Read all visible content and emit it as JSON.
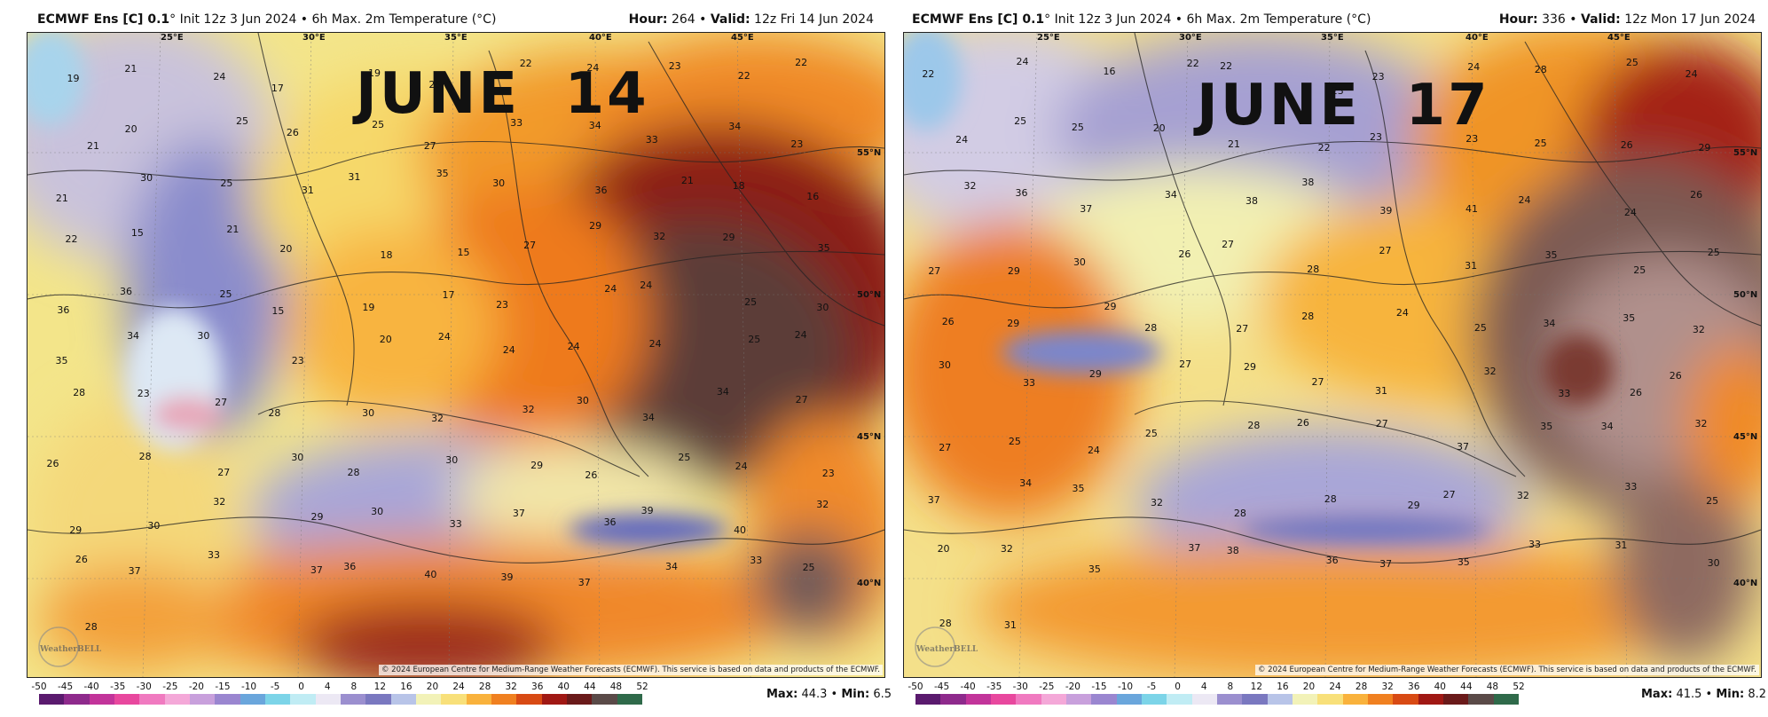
{
  "panels": [
    {
      "header_left_model": "ECMWF Ens [C] 0.1",
      "header_left_rest": "° Init 12z 3 Jun 2024 • 6h Max. 2m Temperature (°C)",
      "hour_label": "Hour:",
      "hour": "264",
      "valid_label": "Valid:",
      "valid": "12z Fri 14 Jun 2024",
      "overlay_title": "JUNE  14",
      "max_label": "Max:",
      "max": "44.3",
      "min_label": "Min:",
      "min": "6.5",
      "copyright": "© 2024 European Centre for Medium-Range Weather Forecasts (ECMWF). This service is based on data and products of the ECMWF.",
      "watermark": "WeatherBELL",
      "lon_labels": [
        "25°E",
        "30°E",
        "35°E",
        "40°E",
        "45°E"
      ],
      "lat_labels": [
        "55°N",
        "50°N",
        "45°N",
        "40°N"
      ],
      "values": [
        "19",
        "21",
        "24",
        "17",
        "19",
        "23",
        "22",
        "24",
        "23",
        "22",
        "22",
        "21",
        "20",
        "25",
        "26",
        "25",
        "27",
        "33",
        "34",
        "33",
        "34",
        "23",
        "21",
        "30",
        "25",
        "31",
        "31",
        "35",
        "30",
        "36",
        "21",
        "18",
        "16",
        "22",
        "15",
        "21",
        "20",
        "18",
        "15",
        "27",
        "29",
        "32",
        "29",
        "35",
        "36",
        "36",
        "25",
        "15",
        "19",
        "17",
        "23",
        "24",
        "24",
        "25",
        "30",
        "35",
        "34",
        "30",
        "23",
        "20",
        "24",
        "24",
        "24",
        "24",
        "25",
        "24",
        "28",
        "23",
        "27",
        "28",
        "30",
        "32",
        "32",
        "30",
        "34",
        "34",
        "27",
        "26",
        "28",
        "27",
        "30",
        "28",
        "30",
        "29",
        "26",
        "25",
        "24",
        "23",
        "29",
        "30",
        "32",
        "29",
        "30",
        "33",
        "37",
        "36",
        "39",
        "40",
        "32",
        "26",
        "37",
        "33",
        "37",
        "36",
        "40",
        "39",
        "37",
        "34",
        "33",
        "25",
        "28"
      ]
    },
    {
      "header_left_model": "ECMWF Ens [C] 0.1",
      "header_left_rest": "° Init 12z 3 Jun 2024 • 6h Max. 2m Temperature (°C)",
      "hour_label": "Hour:",
      "hour": "336",
      "valid_label": "Valid:",
      "valid": "12z Mon 17 Jun 2024",
      "overlay_title": "JUNE  17",
      "max_label": "Max:",
      "max": "41.5",
      "min_label": "Min:",
      "min": "8.2",
      "copyright": "© 2024 European Centre for Medium-Range Weather Forecasts (ECMWF). This service is based on data and products of the ECMWF.",
      "watermark": "WeatherBELL",
      "lon_labels": [
        "25°E",
        "30°E",
        "35°E",
        "40°E",
        "45°E"
      ],
      "lat_labels": [
        "55°N",
        "50°N",
        "45°N",
        "40°N"
      ],
      "values": [
        "22",
        "24",
        "16",
        "22",
        "22",
        "23",
        "23",
        "24",
        "28",
        "25",
        "24",
        "24",
        "25",
        "25",
        "20",
        "21",
        "22",
        "23",
        "23",
        "25",
        "26",
        "29",
        "32",
        "36",
        "37",
        "34",
        "38",
        "38",
        "39",
        "41",
        "24",
        "24",
        "26",
        "27",
        "29",
        "30",
        "26",
        "27",
        "28",
        "27",
        "31",
        "35",
        "25",
        "25",
        "26",
        "29",
        "29",
        "28",
        "27",
        "28",
        "24",
        "25",
        "34",
        "35",
        "32",
        "30",
        "33",
        "29",
        "27",
        "29",
        "27",
        "31",
        "32",
        "33",
        "26",
        "26",
        "27",
        "25",
        "24",
        "25",
        "28",
        "26",
        "27",
        "37",
        "35",
        "34",
        "32",
        "37",
        "34",
        "35",
        "32",
        "28",
        "28",
        "29",
        "27",
        "32",
        "33",
        "25",
        "20",
        "32",
        "35",
        "37",
        "38",
        "36",
        "37",
        "35",
        "33",
        "31",
        "30",
        "28",
        "31"
      ]
    }
  ],
  "colorbar": {
    "ticks": [
      "-50",
      "-45",
      "-40",
      "-35",
      "-30",
      "-25",
      "-20",
      "-15",
      "-10",
      "-5",
      "0",
      "4",
      "8",
      "12",
      "16",
      "20",
      "24",
      "28",
      "32",
      "36",
      "40",
      "44",
      "48",
      "52"
    ],
    "colors": [
      "#5a1a6e",
      "#8e2a8c",
      "#c2349a",
      "#e8489e",
      "#f07ac0",
      "#f4a8d8",
      "#c8a0dc",
      "#9a86d0",
      "#6aa6dc",
      "#7cd4e8",
      "#c0ecf4",
      "#ece8f4",
      "#9b8fcf",
      "#7a78c0",
      "#b8c4e8",
      "#f2f2b8",
      "#f8e07a",
      "#f9b23c",
      "#f08020",
      "#d84a14",
      "#a01814",
      "#6a1a1a",
      "#5a4a48",
      "#2f6a4a"
    ]
  }
}
